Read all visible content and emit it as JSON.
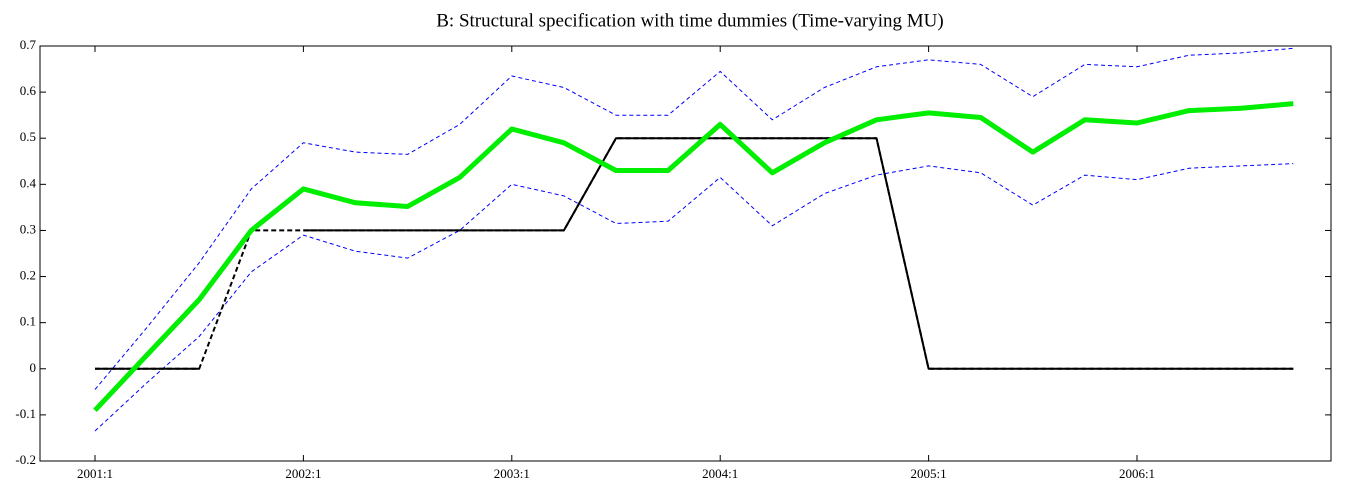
{
  "chart_data": {
    "type": "line",
    "title": "B: Structural specification with time dummies (Time-varying MU)",
    "categories": [
      "2001:1",
      null,
      null,
      null,
      "2002:1",
      null,
      null,
      null,
      "2003:1",
      null,
      null,
      null,
      "2004:1",
      null,
      null,
      null,
      "2005:1",
      null,
      null,
      null,
      "2006:1",
      null,
      null,
      null
    ],
    "series": [
      {
        "color": "#0000ff",
        "dash": "4,3",
        "width": 1,
        "values": [
          -0.045,
          0.09,
          0.23,
          0.39,
          0.49,
          0.47,
          0.465,
          0.53,
          0.635,
          0.61,
          0.55,
          0.55,
          0.645,
          0.54,
          0.61,
          0.655,
          0.67,
          0.66,
          0.59,
          0.66,
          0.655,
          0.68,
          0.685,
          0.695
        ]
      },
      {
        "color": "#0000ff",
        "dash": "4,3",
        "width": 1,
        "values": [
          -0.135,
          -0.03,
          0.07,
          0.21,
          0.29,
          0.255,
          0.24,
          0.3,
          0.4,
          0.375,
          0.315,
          0.32,
          0.415,
          0.31,
          0.38,
          0.42,
          0.44,
          0.425,
          0.355,
          0.42,
          0.41,
          0.435,
          0.44,
          0.445
        ]
      },
      {
        "color": "#000000",
        "dash": "5,3",
        "width": 2,
        "values": [
          0,
          0,
          0,
          0.3,
          0.3,
          0.3,
          0.3,
          0.3,
          0.3,
          0.3,
          0.5,
          0.5,
          0.5,
          0.5,
          0.5,
          0.5,
          0,
          0,
          0,
          0,
          0,
          0,
          0,
          0
        ]
      },
      {
        "color": "#000000",
        "dash": "none",
        "width": 2,
        "values": [
          0,
          0,
          0,
          null,
          0.3,
          0.3,
          0.3,
          0.3,
          0.3,
          0.3,
          0.5,
          0.5,
          0.5,
          0.5,
          0.5,
          0.5,
          0,
          0,
          0,
          0,
          0,
          0,
          0,
          0
        ]
      },
      {
        "color": "#00ee00",
        "dash": "none",
        "width": 5,
        "values": [
          -0.09,
          0.03,
          0.15,
          0.3,
          0.39,
          0.36,
          0.352,
          0.415,
          0.52,
          0.49,
          0.43,
          0.43,
          0.53,
          0.425,
          0.49,
          0.54,
          0.555,
          0.545,
          0.47,
          0.54,
          0.533,
          0.56,
          0.565,
          0.575
        ]
      }
    ],
    "ylim": [
      -0.2,
      0.7
    ],
    "yticks": [
      -0.2,
      -0.1,
      0,
      0.1,
      0.2,
      0.3,
      0.4,
      0.5,
      0.6,
      0.7
    ],
    "grid": false
  }
}
